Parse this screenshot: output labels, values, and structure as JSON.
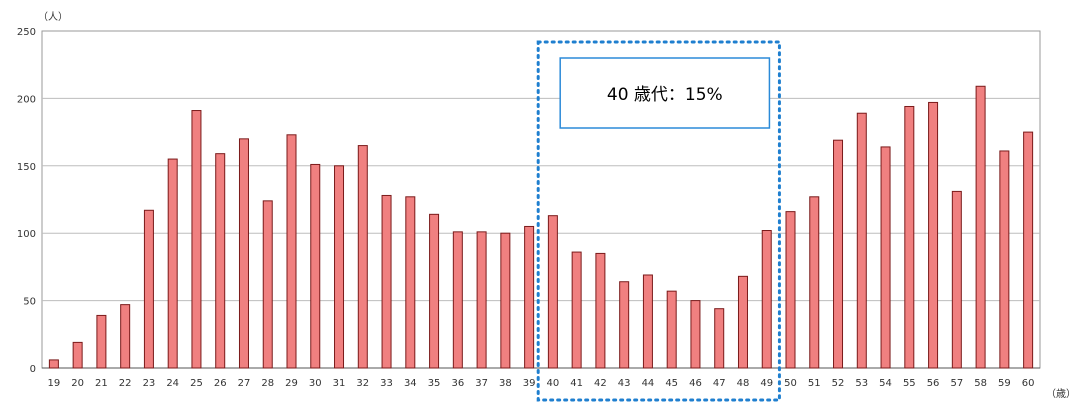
{
  "chart_data": {
    "type": "bar",
    "categories": [
      "19",
      "20",
      "21",
      "22",
      "23",
      "24",
      "25",
      "26",
      "27",
      "28",
      "29",
      "30",
      "31",
      "32",
      "33",
      "34",
      "35",
      "36",
      "37",
      "38",
      "39",
      "40",
      "41",
      "42",
      "43",
      "44",
      "45",
      "46",
      "47",
      "48",
      "49",
      "50",
      "51",
      "52",
      "53",
      "54",
      "55",
      "56",
      "57",
      "58",
      "59",
      "60"
    ],
    "values": [
      6,
      19,
      39,
      47,
      117,
      155,
      191,
      159,
      170,
      124,
      173,
      151,
      150,
      165,
      128,
      127,
      114,
      101,
      101,
      100,
      105,
      113,
      86,
      85,
      64,
      69,
      57,
      50,
      44,
      68,
      102,
      116,
      127,
      169,
      189,
      164,
      194,
      197,
      131,
      209,
      161,
      175
    ],
    "ylim": [
      0,
      250
    ],
    "yticks": [
      0,
      50,
      100,
      150,
      200,
      250
    ],
    "y_unit": "（人）",
    "x_unit": "（歳）",
    "grid": true,
    "highlight": {
      "from": "40",
      "to": "49",
      "label": "40 歳代：15%",
      "color": "#1f7fcf"
    },
    "colors": {
      "bar": "#f08080",
      "bar_edge": "#7a1a1a"
    }
  }
}
